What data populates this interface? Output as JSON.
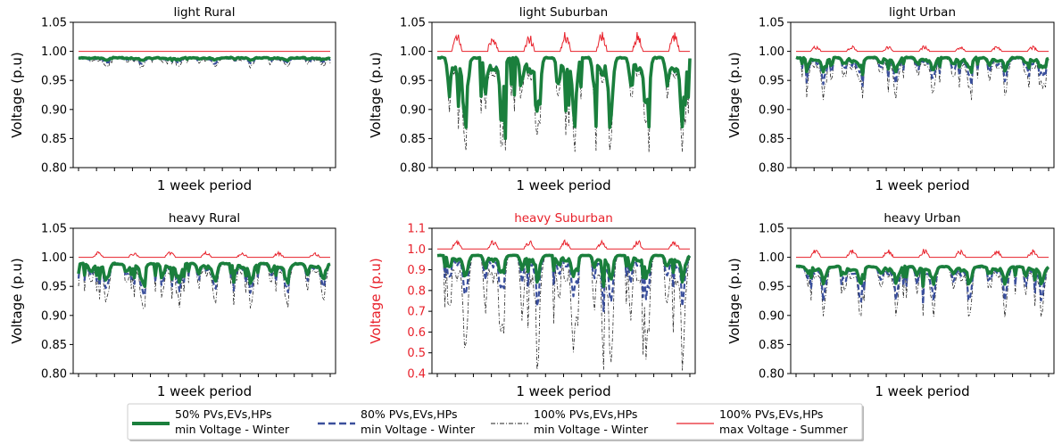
{
  "colors": {
    "green": "#1a7f3c",
    "blue": "#3a4f9c",
    "black": "#222222",
    "red": "#e8202a",
    "axis": "#000000",
    "highlight_title": "#e8202a"
  },
  "chart_data": [
    {
      "type": "line",
      "title": "light Rural",
      "xlabel": "1 week period",
      "ylabel": "Voltage (p.u)",
      "ylim": [
        0.8,
        1.05
      ],
      "yticks": [
        "0.80",
        "0.85",
        "0.90",
        "0.95",
        "1.00",
        "1.05"
      ],
      "grid": false,
      "series_summary": {
        "max_voltage_summer": {
          "base": 1.0,
          "peak": 1.0
        },
        "min_voltage_50": {
          "high": 0.99,
          "low": 0.985
        },
        "min_voltage_80": {
          "high": 0.99,
          "low": 0.98
        },
        "min_voltage_100": {
          "high": 0.99,
          "low": 0.975
        }
      }
    },
    {
      "type": "line",
      "title": "light Suburban",
      "xlabel": "1 week period",
      "ylabel": "Voltage (p.u)",
      "ylim": [
        0.8,
        1.05
      ],
      "yticks": [
        "0.80",
        "0.85",
        "0.90",
        "0.95",
        "1.00",
        "1.05"
      ],
      "grid": false,
      "series_summary": {
        "max_voltage_summer": {
          "base": 1.0,
          "peak": 1.035
        },
        "min_voltage_50": {
          "high": 0.99,
          "low": 0.85
        },
        "min_voltage_80": {
          "high": 0.99,
          "low": 0.86
        },
        "min_voltage_100": {
          "high": 0.99,
          "low": 0.83
        }
      }
    },
    {
      "type": "line",
      "title": "light Urban",
      "xlabel": "1 week period",
      "ylabel": "Voltage (p.u)",
      "ylim": [
        0.8,
        1.05
      ],
      "yticks": [
        "0.80",
        "0.85",
        "0.90",
        "0.95",
        "1.00",
        "1.05"
      ],
      "grid": false,
      "series_summary": {
        "max_voltage_summer": {
          "base": 1.0,
          "peak": 1.01
        },
        "min_voltage_50": {
          "high": 0.99,
          "low": 0.96
        },
        "min_voltage_80": {
          "high": 0.99,
          "low": 0.94
        },
        "min_voltage_100": {
          "high": 0.99,
          "low": 0.92
        }
      }
    },
    {
      "type": "line",
      "title": "heavy Rural",
      "xlabel": "1 week period",
      "ylabel": "Voltage (p.u)",
      "ylim": [
        0.8,
        1.05
      ],
      "yticks": [
        "0.80",
        "0.85",
        "0.90",
        "0.95",
        "1.00",
        "1.05"
      ],
      "grid": false,
      "series_summary": {
        "max_voltage_summer": {
          "base": 1.0,
          "peak": 1.01
        },
        "min_voltage_50": {
          "high": 0.99,
          "low": 0.95
        },
        "min_voltage_80": {
          "high": 0.99,
          "low": 0.935
        },
        "min_voltage_100": {
          "high": 0.99,
          "low": 0.915
        }
      }
    },
    {
      "type": "line",
      "title": "heavy Suburban",
      "title_color": "#e8202a",
      "xlabel": "1 week period",
      "ylabel": "Voltage (p.u)",
      "ylabel_color": "#e8202a",
      "ytick_color": "#e8202a",
      "ylim": [
        0.4,
        1.1
      ],
      "yticks": [
        "0.4",
        "0.5",
        "0.6",
        "0.7",
        "0.8",
        "0.9",
        "1.0",
        "1.1"
      ],
      "grid": false,
      "series_summary": {
        "max_voltage_summer": {
          "base": 1.0,
          "peak": 1.045
        },
        "min_voltage_50": {
          "high": 0.97,
          "low": 0.82
        },
        "min_voltage_80": {
          "high": 0.97,
          "low": 0.7
        },
        "min_voltage_100": {
          "high": 0.97,
          "low": 0.42
        }
      }
    },
    {
      "type": "line",
      "title": "heavy Urban",
      "xlabel": "1 week period",
      "ylabel": "Voltage (p.u)",
      "ylim": [
        0.8,
        1.05
      ],
      "yticks": [
        "0.80",
        "0.85",
        "0.90",
        "0.95",
        "1.00",
        "1.05"
      ],
      "grid": false,
      "series_summary": {
        "max_voltage_summer": {
          "base": 1.0,
          "peak": 1.015
        },
        "min_voltage_50": {
          "high": 0.985,
          "low": 0.95
        },
        "min_voltage_80": {
          "high": 0.985,
          "low": 0.92
        },
        "min_voltage_100": {
          "high": 0.985,
          "low": 0.9
        }
      }
    }
  ],
  "legend": {
    "placement": "bottom-center",
    "entries": [
      {
        "line1": "50% PVs,EVs,HPs",
        "line2": "min Voltage - Winter",
        "color": "#1a7f3c",
        "style": "solid-thick"
      },
      {
        "line1": "80% PVs,EVs,HPs",
        "line2": "min Voltage - Winter",
        "color": "#3a4f9c",
        "style": "dashed"
      },
      {
        "line1": "100% PVs,EVs,HPs",
        "line2": "min Voltage - Winter",
        "color": "#222222",
        "style": "dashdot"
      },
      {
        "line1": "100% PVs,EVs,HPs",
        "line2": "max Voltage - Summer",
        "color": "#e8202a",
        "style": "solid-thin"
      }
    ]
  }
}
